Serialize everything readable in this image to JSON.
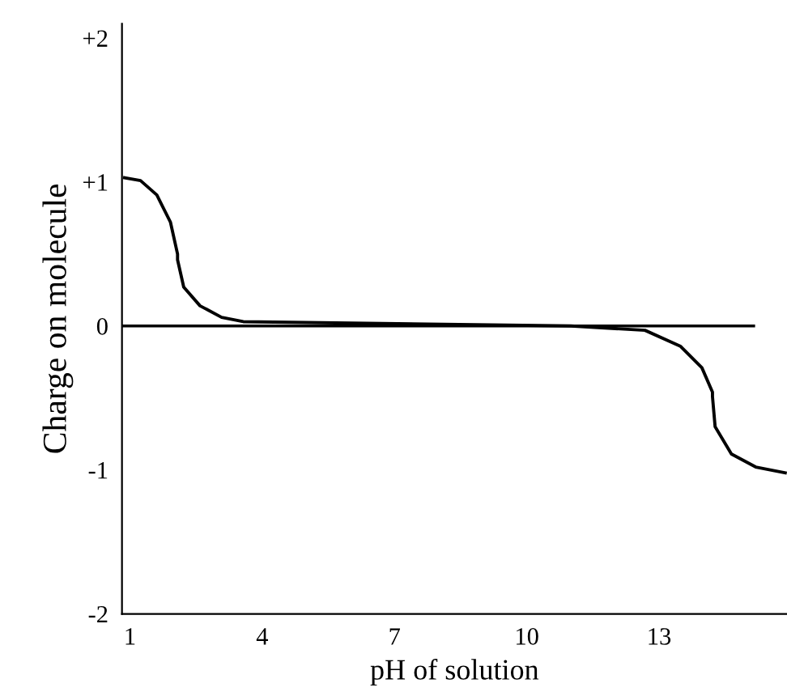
{
  "chart_data": {
    "type": "line",
    "xlabel": "pH of solution",
    "ylabel": "Charge on molecule",
    "x": [
      0.88,
      1.24,
      1.61,
      1.92,
      2.08,
      2.08,
      2.22,
      2.59,
      3.08,
      3.57,
      11.0,
      12.68,
      13.48,
      13.97,
      14.21,
      14.21,
      14.27,
      14.64,
      15.19,
      15.86
    ],
    "series": [
      {
        "color": "#000000",
        "values": [
          1.03,
          1.01,
          0.91,
          0.72,
          0.5,
          0.46,
          0.27,
          0.14,
          0.06,
          0.03,
          0.0,
          -0.03,
          -0.14,
          -0.29,
          -0.46,
          -0.49,
          -0.7,
          -0.89,
          -0.98,
          -1.02
        ]
      }
    ],
    "xlim": [
      0.82,
      15.9
    ],
    "xticks": [
      1,
      4,
      7,
      10,
      13
    ],
    "ylim": [
      -2,
      2.1
    ],
    "yticks": [
      {
        "value": 2,
        "label": "+2"
      },
      {
        "value": 1,
        "label": "+1"
      },
      0,
      -1,
      -2
    ],
    "ref_lines": [
      {
        "axis": "y",
        "value": 0,
        "color": "#000000"
      }
    ],
    "grid": false,
    "legend": false,
    "marker": "none",
    "line_style": "solid"
  }
}
